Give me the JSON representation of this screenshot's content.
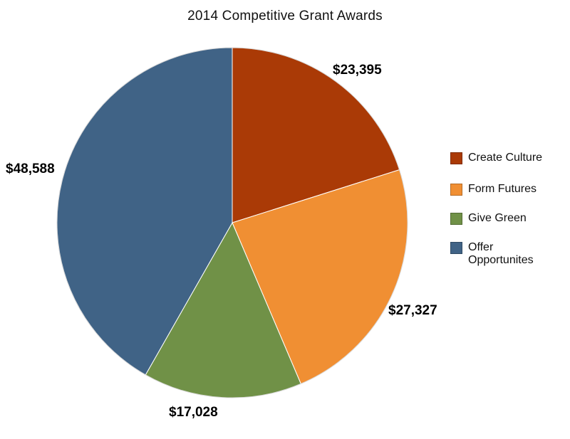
{
  "chart_data": {
    "type": "pie",
    "title": "2014 Competitive Grant Awards",
    "categories": [
      "Create Culture",
      "Form Futures",
      "Give Green",
      "Offer Opportunites"
    ],
    "values": [
      23395,
      27327,
      17028,
      48588
    ],
    "value_labels": [
      "$23,395",
      "$27,327",
      "$17,028",
      "$48,588"
    ],
    "colors": [
      "#AA3A06",
      "#F08F33",
      "#709147",
      "#406386"
    ],
    "start_angle": "12 o'clock",
    "direction": "clockwise",
    "legend_position": "right"
  }
}
